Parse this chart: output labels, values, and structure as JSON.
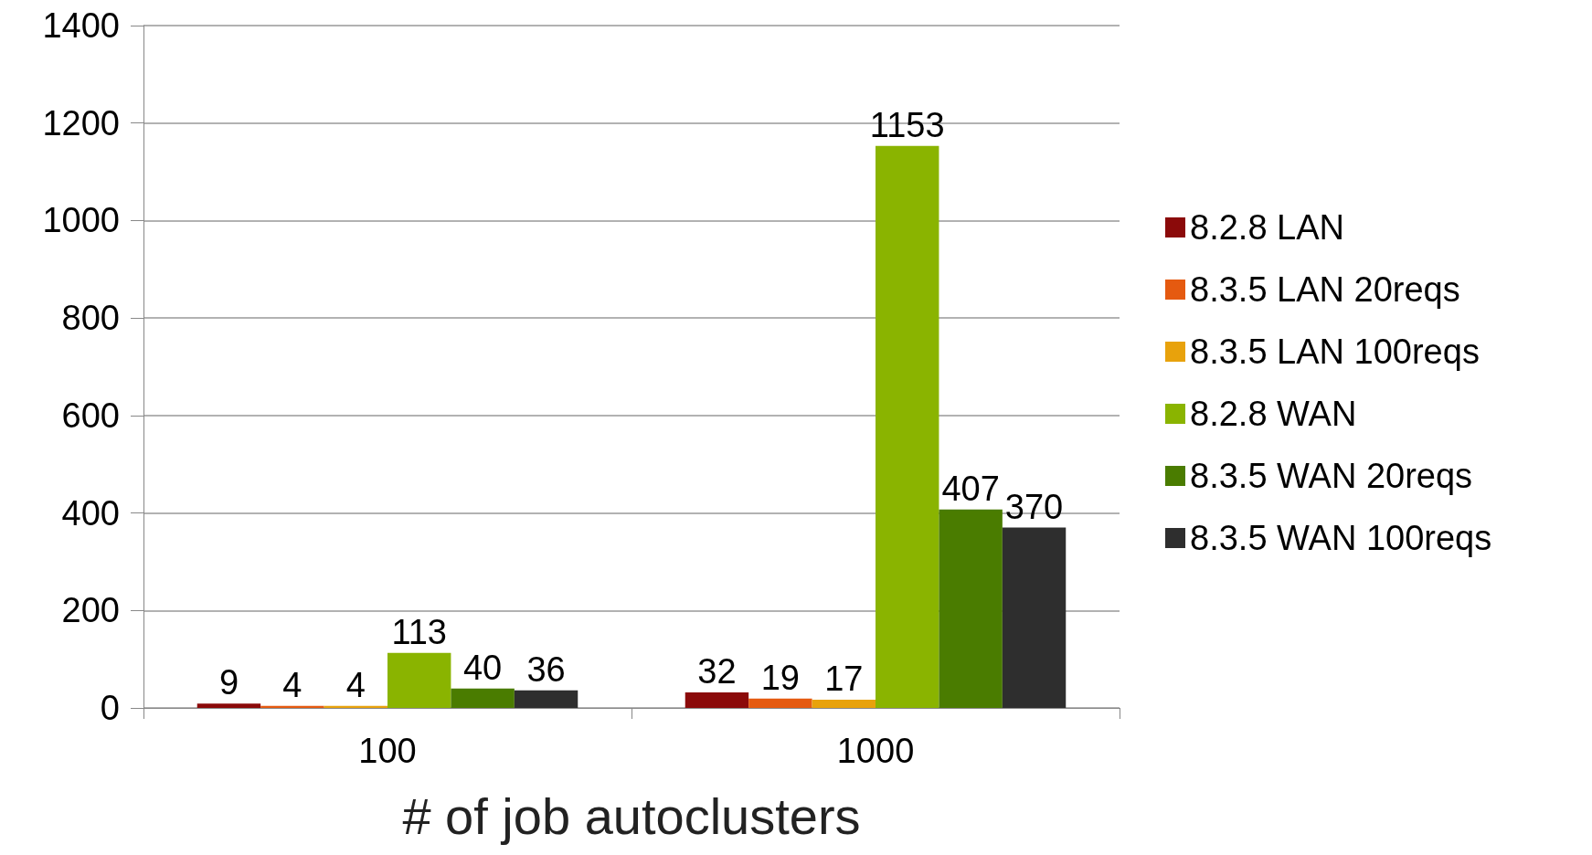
{
  "chart_data": {
    "type": "bar",
    "xlabel": "# of job autoclusters",
    "categories": [
      "100",
      "1000"
    ],
    "series": [
      {
        "name": "8.2.8 LAN",
        "color": "#8b0a0a",
        "values": [
          9,
          32
        ]
      },
      {
        "name": "8.3.5 LAN 20reqs",
        "color": "#e55a10",
        "values": [
          4,
          19
        ]
      },
      {
        "name": "8.3.5 LAN 100reqs",
        "color": "#e8a20c",
        "values": [
          4,
          17
        ]
      },
      {
        "name": "8.2.8 WAN",
        "color": "#8ab400",
        "values": [
          113,
          1153
        ]
      },
      {
        "name": "8.3.5 WAN 20reqs",
        "color": "#4a7c00",
        "values": [
          40,
          407
        ]
      },
      {
        "name": "8.3.5 WAN 100reqs",
        "color": "#2e2e2e",
        "values": [
          36,
          370
        ]
      }
    ],
    "ylim": [
      0,
      1400
    ],
    "yticks": [
      0,
      200,
      400,
      600,
      800,
      1000,
      1200,
      1400
    ],
    "grid": "y",
    "legend": "right",
    "data_labels": true
  }
}
